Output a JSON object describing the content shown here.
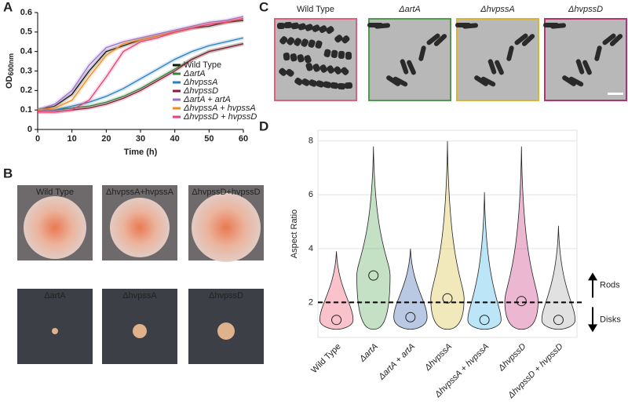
{
  "panel_labels": [
    "A",
    "B",
    "C",
    "D"
  ],
  "colonies": {
    "labels": [
      "Wild Type",
      "ΔhvpssA+hvpssA",
      "ΔhvpssD+hvpssD",
      "ΔartA",
      "ΔhvpssA",
      "ΔhvpssD"
    ]
  },
  "micrographs": {
    "labels": [
      "Wild Type",
      "ΔartA",
      "ΔhvpssA",
      "ΔhvpssD"
    ],
    "colors": [
      "#e0607a",
      "#4f9a4f",
      "#d8b43a",
      "#b0356e"
    ]
  },
  "chart_data": [
    {
      "type": "line",
      "xlabel": "Time (h)",
      "ylabel": "OD",
      "ylabel_sub": "600nm",
      "x": [
        0,
        5,
        10,
        15,
        20,
        25,
        30,
        35,
        40,
        45,
        50,
        55,
        60
      ],
      "xlim": [
        0,
        60
      ],
      "xticks": [
        0,
        10,
        20,
        30,
        40,
        50,
        60
      ],
      "ylim": [
        0,
        0.6
      ],
      "yticks": [
        0,
        0.1,
        0.2,
        0.3,
        0.4,
        0.5,
        0.6
      ],
      "legend": "lower right",
      "series": [
        {
          "name": "Wild Type",
          "color": "#111111",
          "values": [
            0.1,
            0.12,
            0.18,
            0.3,
            0.4,
            0.43,
            0.46,
            0.48,
            0.5,
            0.52,
            0.53,
            0.55,
            0.56
          ]
        },
        {
          "name": "ΔartA",
          "color": "#2e8b3a",
          "values": [
            0.1,
            0.1,
            0.11,
            0.12,
            0.14,
            0.17,
            0.21,
            0.26,
            0.31,
            0.36,
            0.4,
            0.42,
            0.44
          ]
        },
        {
          "name": "ΔhvpssA",
          "color": "#2a7fc0",
          "values": [
            0.1,
            0.1,
            0.12,
            0.14,
            0.17,
            0.21,
            0.26,
            0.31,
            0.36,
            0.4,
            0.43,
            0.45,
            0.47
          ]
        },
        {
          "name": "ΔhvpssD",
          "color": "#8b1a3a",
          "values": [
            0.09,
            0.09,
            0.1,
            0.11,
            0.13,
            0.16,
            0.2,
            0.25,
            0.3,
            0.36,
            0.4,
            0.42,
            0.44
          ]
        },
        {
          "name": "ΔartA  + artA",
          "color": "#9b6fd0",
          "values": [
            0.1,
            0.13,
            0.2,
            0.33,
            0.42,
            0.45,
            0.47,
            0.49,
            0.51,
            0.53,
            0.55,
            0.56,
            0.58
          ]
        },
        {
          "name": "ΔhvpssA + hvpssA",
          "color": "#f28c1e",
          "values": [
            0.1,
            0.11,
            0.15,
            0.27,
            0.38,
            0.44,
            0.46,
            0.48,
            0.5,
            0.52,
            0.54,
            0.55,
            0.57
          ]
        },
        {
          "name": "ΔhvpssD + hvpssD",
          "color": "#e8407a",
          "values": [
            0.09,
            0.09,
            0.1,
            0.15,
            0.27,
            0.4,
            0.45,
            0.47,
            0.5,
            0.52,
            0.54,
            0.55,
            0.57
          ]
        }
      ]
    },
    {
      "type": "violin",
      "ylabel": "Aspect Ratio",
      "categories": [
        "Wild Type",
        "ΔartA",
        "ΔartA + artA",
        "ΔhvpssA",
        "ΔhvpssA + hvpssA",
        "ΔhvpssD",
        "ΔhvpssD + hvpssD"
      ],
      "colors": [
        "#f0506a",
        "#5aa85a",
        "#3a64b0",
        "#d8c040",
        "#40b8e8",
        "#c8307a",
        "#aaaaaa"
      ],
      "medians": [
        1.35,
        3.0,
        1.45,
        2.15,
        1.35,
        2.05,
        1.35
      ],
      "maxima": [
        3.9,
        7.8,
        4.0,
        8.0,
        6.1,
        7.8,
        4.85
      ],
      "minima": [
        1,
        1,
        1,
        1,
        1,
        1,
        1
      ],
      "ylim": [
        0.7,
        8.4
      ],
      "yticks": [
        2,
        4,
        6,
        8
      ],
      "grid": true,
      "threshold": 2,
      "annotations": [
        "Rods",
        "Disks"
      ]
    }
  ]
}
